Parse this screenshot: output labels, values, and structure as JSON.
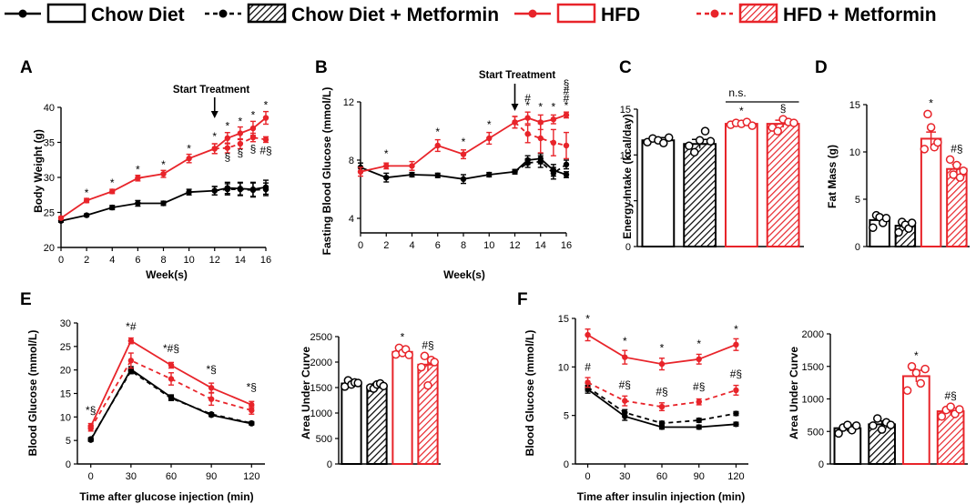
{
  "colors": {
    "black": "#000000",
    "red": "#e8242a"
  },
  "legend": [
    {
      "label": "Chow Diet",
      "color": "#000000",
      "dashed": false,
      "hatched": false
    },
    {
      "label": "Chow Diet + Metformin",
      "color": "#000000",
      "dashed": true,
      "hatched": true
    },
    {
      "label": "HFD",
      "color": "#e8242a",
      "dashed": false,
      "hatched": false
    },
    {
      "label": "HFD + Metformin",
      "color": "#e8242a",
      "dashed": true,
      "hatched": true
    }
  ],
  "chart_data": [
    {
      "panel": "A",
      "type": "line",
      "title": "",
      "xlabel": "Week(s)",
      "ylabel": "Body Weight (g)",
      "xlim": [
        0,
        16
      ],
      "ylim": [
        20,
        40
      ],
      "xticks": [
        0,
        2,
        4,
        6,
        8,
        10,
        12,
        14,
        16
      ],
      "yticks": [
        20,
        25,
        30,
        35,
        40
      ],
      "x": [
        0,
        2,
        4,
        6,
        8,
        10,
        12,
        13,
        14,
        15,
        16
      ],
      "series": [
        {
          "name": "Chow Diet",
          "values": [
            23.8,
            24.6,
            25.7,
            26.3,
            26.3,
            27.9,
            28.1,
            28.5,
            28.4,
            28.3,
            28.6
          ],
          "err": [
            0.2,
            0.2,
            0.3,
            0.4,
            0.3,
            0.4,
            0.6,
            0.8,
            0.9,
            1.0,
            1.0
          ]
        },
        {
          "name": "Chow Diet + Metformin",
          "values": [
            null,
            null,
            null,
            null,
            null,
            null,
            28.1,
            28.3,
            28.3,
            28.2,
            28.3
          ],
          "err": [
            0,
            0,
            0,
            0,
            0,
            0,
            0.6,
            0.8,
            0.9,
            1.0,
            0.9
          ]
        },
        {
          "name": "HFD",
          "values": [
            24.2,
            26.7,
            28.0,
            29.9,
            30.5,
            32.7,
            34.1,
            35.6,
            36.3,
            37.0,
            38.5
          ],
          "err": [
            0.2,
            0.3,
            0.3,
            0.4,
            0.5,
            0.6,
            0.7,
            0.8,
            0.9,
            1.0,
            0.9
          ]
        },
        {
          "name": "HFD + Metformin",
          "values": [
            null,
            null,
            null,
            null,
            null,
            null,
            34.1,
            34.2,
            34.8,
            35.7,
            35.4
          ],
          "err": [
            0,
            0,
            0,
            0,
            0,
            0,
            0.7,
            0.7,
            0.7,
            0.6,
            0.4
          ]
        }
      ],
      "annotation_text": "Start Treatment",
      "annotation_x": 12,
      "marks": [
        {
          "x": 2,
          "y": 27.3,
          "t": "*"
        },
        {
          "x": 4,
          "y": 28.7,
          "t": "*"
        },
        {
          "x": 6,
          "y": 30.6,
          "t": "*"
        },
        {
          "x": 8,
          "y": 31.3,
          "t": "*"
        },
        {
          "x": 10,
          "y": 33.6,
          "t": "*"
        },
        {
          "x": 12,
          "y": 35.3,
          "t": "*"
        },
        {
          "x": 13,
          "y": 36.8,
          "t": "*"
        },
        {
          "x": 14,
          "y": 37.5,
          "t": "*"
        },
        {
          "x": 15,
          "y": 38.4,
          "t": "*"
        },
        {
          "x": 16,
          "y": 39.8,
          "t": "*"
        },
        {
          "x": 13,
          "y": 32.4,
          "t": "§"
        },
        {
          "x": 14,
          "y": 33.0,
          "t": "§"
        },
        {
          "x": 15,
          "y": 33.6,
          "t": "§"
        },
        {
          "x": 16,
          "y": 33.3,
          "t": "#§"
        }
      ]
    },
    {
      "panel": "B",
      "type": "line",
      "title": "",
      "xlabel": "Week(s)",
      "ylabel": "Fasting Blood Glucose (mmol/L)",
      "xlim": [
        0,
        16
      ],
      "ylim": [
        3,
        12
      ],
      "xticks": [
        0,
        2,
        4,
        6,
        8,
        10,
        12,
        14,
        16
      ],
      "yticks": [
        4,
        8,
        12
      ],
      "x": [
        0,
        2,
        4,
        6,
        8,
        10,
        12,
        13,
        14,
        15,
        16
      ],
      "series": [
        {
          "name": "Chow Diet",
          "values": [
            7.5,
            6.8,
            7.0,
            6.95,
            6.7,
            7.0,
            7.2,
            8.0,
            8.1,
            7.3,
            7.0
          ],
          "err": [
            0.3,
            0.3,
            0.15,
            0.15,
            0.3,
            0.15,
            0.15,
            0.3,
            0.35,
            0.4,
            0.2
          ]
        },
        {
          "name": "Chow Diet + Metformin",
          "values": [
            null,
            null,
            null,
            null,
            null,
            null,
            7.2,
            7.8,
            7.9,
            7.1,
            7.7
          ],
          "err": [
            0,
            0,
            0,
            0,
            0,
            0,
            0.15,
            0.3,
            0.4,
            0.4,
            0.3
          ]
        },
        {
          "name": "HFD",
          "values": [
            7.2,
            7.6,
            7.6,
            9.0,
            8.4,
            9.5,
            10.6,
            10.9,
            10.6,
            10.8,
            11.1
          ],
          "err": [
            0.3,
            0.2,
            0.3,
            0.4,
            0.3,
            0.4,
            0.4,
            0.4,
            0.5,
            0.3,
            0.2
          ]
        },
        {
          "name": "HFD + Metformin",
          "values": [
            null,
            null,
            null,
            null,
            null,
            null,
            10.6,
            9.8,
            9.5,
            9.2,
            9.0
          ],
          "err": [
            0,
            0,
            0,
            0,
            0,
            0,
            0.4,
            0.6,
            1.0,
            0.9,
            0.9
          ]
        }
      ],
      "annotation_text": "Start Treatment",
      "annotation_x": 12,
      "marks": [
        {
          "x": 2,
          "y": 8.2,
          "t": "*"
        },
        {
          "x": 6,
          "y": 9.7,
          "t": "*"
        },
        {
          "x": 8,
          "y": 9.0,
          "t": "*"
        },
        {
          "x": 10,
          "y": 10.2,
          "t": "*"
        },
        {
          "x": 12,
          "y": 11.3,
          "t": "*"
        },
        {
          "x": 13,
          "y": 11.5,
          "t": "*"
        },
        {
          "x": 13,
          "y": 12.0,
          "t": "#"
        },
        {
          "x": 14,
          "y": 11.4,
          "t": "*"
        },
        {
          "x": 15,
          "y": 11.4,
          "t": "*"
        },
        {
          "x": 16,
          "y": 11.5,
          "t": "*"
        },
        {
          "x": 16,
          "y": 12.0,
          "t": "#"
        },
        {
          "x": 16,
          "y": 12.5,
          "t": "#"
        },
        {
          "x": 16,
          "y": 13.0,
          "t": "§"
        }
      ]
    },
    {
      "panel": "C",
      "type": "bar",
      "title": "",
      "xlabel": "",
      "ylabel": "Energy Intake (kcal/day)",
      "ylim": [
        0,
        15
      ],
      "yticks": [
        0,
        5,
        10,
        15
      ],
      "categories": [
        "Chow Diet",
        "Chow Diet + Metformin",
        "HFD",
        "HFD + Metformin"
      ],
      "values": [
        11.6,
        11.2,
        13.4,
        13.4
      ],
      "err": [
        0.3,
        0.5,
        0.2,
        0.4
      ],
      "points": [
        [
          11.4,
          11.8,
          11.6,
          11.3,
          11.9
        ],
        [
          11.0,
          10.3,
          11.6,
          12.6,
          11.5
        ],
        [
          13.3,
          13.5,
          13.4,
          13.6,
          13.2
        ],
        [
          13.0,
          12.6,
          13.9,
          13.6,
          13.5
        ]
      ],
      "marks": [
        {
          "i": 2,
          "t": "*"
        },
        {
          "i": 3,
          "t": "§"
        }
      ],
      "bracket_label": "n.s."
    },
    {
      "panel": "D",
      "type": "bar",
      "title": "",
      "xlabel": "",
      "ylabel": "Fat Mass (g)",
      "ylim": [
        0,
        15
      ],
      "yticks": [
        0,
        5,
        10,
        15
      ],
      "categories": [
        "Chow Diet",
        "Chow Diet + Metformin",
        "HFD",
        "HFD + Metformin"
      ],
      "values": [
        2.8,
        2.2,
        11.4,
        8.2
      ],
      "err": [
        0.3,
        0.3,
        0.7,
        0.5
      ],
      "points": [
        [
          2.0,
          3.3,
          3.1,
          2.5,
          3.0
        ],
        [
          1.5,
          2.6,
          2.3,
          1.9,
          2.5
        ],
        [
          10.3,
          14.0,
          12.6,
          10.5,
          11.0
        ],
        [
          9.2,
          7.6,
          8.6,
          7.3,
          8.0
        ]
      ],
      "marks": [
        {
          "i": 2,
          "t": "*"
        },
        {
          "i": 3,
          "t": "#§"
        }
      ]
    },
    {
      "panel": "E",
      "type": "line",
      "title": "",
      "xlabel": "Time after glucose injection (min)",
      "ylabel": "Blood Glucose (mmol/L)",
      "xlim": [
        -10,
        130
      ],
      "ylim": [
        0,
        30
      ],
      "xticks": [
        0,
        30,
        60,
        90,
        120
      ],
      "yticks": [
        0,
        5,
        10,
        15,
        20,
        25,
        30
      ],
      "x": [
        0,
        30,
        60,
        90,
        120
      ],
      "series": [
        {
          "name": "Chow Diet",
          "values": [
            5.1,
            20.1,
            14.2,
            10.4,
            8.6
          ],
          "err": [
            0.3,
            0.6,
            0.5,
            0.3,
            0.3
          ]
        },
        {
          "name": "Chow Diet + Metformin",
          "values": [
            5.3,
            19.8,
            14.0,
            10.6,
            8.7
          ],
          "err": [
            0.3,
            0.6,
            0.5,
            0.3,
            0.3
          ]
        },
        {
          "name": "HFD",
          "values": [
            8.0,
            26.2,
            21.0,
            16.2,
            12.6
          ],
          "err": [
            0.6,
            0.6,
            0.6,
            1.0,
            0.7
          ]
        },
        {
          "name": "HFD + Metformin",
          "values": [
            7.6,
            22.0,
            18.1,
            13.8,
            11.4
          ],
          "err": [
            0.6,
            1.6,
            1.3,
            1.3,
            0.8
          ]
        }
      ],
      "marks": [
        {
          "x": 0,
          "y": 10.6,
          "t": "*§"
        },
        {
          "x": 30,
          "y": 28.5,
          "t": "*#"
        },
        {
          "x": 60,
          "y": 23.8,
          "t": "*#§"
        },
        {
          "x": 90,
          "y": 19.4,
          "t": "*§"
        },
        {
          "x": 120,
          "y": 15.6,
          "t": "*§"
        }
      ]
    },
    {
      "panel": "E2",
      "type": "bar",
      "title": "",
      "xlabel": "",
      "ylabel": "Area Under Curve",
      "ylim": [
        0,
        2500
      ],
      "yticks": [
        0,
        500,
        1000,
        1500,
        2000,
        2500
      ],
      "categories": [
        "Chow Diet",
        "Chow Diet + Metformin",
        "HFD",
        "HFD + Metformin"
      ],
      "values": [
        1580,
        1530,
        2200,
        1950
      ],
      "err": [
        50,
        50,
        70,
        130
      ],
      "points": [
        [
          1520,
          1640,
          1560,
          1600,
          1590
        ],
        [
          1500,
          1480,
          1560,
          1580,
          1530
        ],
        [
          2150,
          2280,
          2180,
          2250,
          2140
        ],
        [
          1900,
          2120,
          1540,
          2040,
          2000
        ]
      ],
      "marks": [
        {
          "i": 2,
          "t": "*"
        },
        {
          "i": 3,
          "t": "#§"
        }
      ]
    },
    {
      "panel": "F",
      "type": "line",
      "title": "",
      "xlabel": "Time after insulin injection (min)",
      "ylabel": "Blood Glucose (mmol/L)",
      "xlim": [
        -10,
        130
      ],
      "ylim": [
        0,
        15
      ],
      "xticks": [
        0,
        30,
        60,
        90,
        120
      ],
      "yticks": [
        0,
        5,
        10,
        15
      ],
      "x": [
        0,
        30,
        60,
        90,
        120
      ],
      "series": [
        {
          "name": "Chow Diet",
          "values": [
            7.7,
            4.9,
            3.8,
            3.8,
            4.1
          ],
          "err": [
            0.4,
            0.4,
            0.2,
            0.2,
            0.2
          ]
        },
        {
          "name": "Chow Diet + Metformin",
          "values": [
            7.9,
            5.3,
            4.2,
            4.5,
            5.2
          ],
          "err": [
            0.4,
            0.3,
            0.2,
            0.2,
            0.2
          ]
        },
        {
          "name": "HFD",
          "values": [
            13.3,
            11.0,
            10.3,
            10.8,
            12.3
          ],
          "err": [
            0.6,
            0.7,
            0.6,
            0.5,
            0.6
          ]
        },
        {
          "name": "HFD + Metformin",
          "values": [
            8.4,
            6.5,
            5.9,
            6.4,
            7.6
          ],
          "err": [
            0.5,
            0.5,
            0.4,
            0.3,
            0.5
          ]
        }
      ],
      "marks": [
        {
          "x": 0,
          "y": 14.6,
          "t": "*"
        },
        {
          "x": 30,
          "y": 12.3,
          "t": "*"
        },
        {
          "x": 60,
          "y": 11.6,
          "t": "*"
        },
        {
          "x": 90,
          "y": 12.0,
          "t": "*"
        },
        {
          "x": 120,
          "y": 13.5,
          "t": "*"
        },
        {
          "x": 0,
          "y": 9.6,
          "t": "#"
        },
        {
          "x": 30,
          "y": 7.8,
          "t": "#§"
        },
        {
          "x": 60,
          "y": 7.1,
          "t": "#§"
        },
        {
          "x": 90,
          "y": 7.6,
          "t": "#§"
        },
        {
          "x": 120,
          "y": 8.9,
          "t": "#§"
        }
      ]
    },
    {
      "panel": "F2",
      "type": "bar",
      "title": "",
      "xlabel": "",
      "ylabel": "Area Under Curve",
      "ylim": [
        0,
        2000
      ],
      "yticks": [
        0,
        500,
        1000,
        1500,
        2000
      ],
      "categories": [
        "Chow Diet",
        "Chow Diet + Metformin",
        "HFD",
        "HFD + Metformin"
      ],
      "values": [
        550,
        610,
        1350,
        810
      ],
      "err": [
        50,
        50,
        90,
        50
      ],
      "points": [
        [
          470,
          560,
          600,
          520,
          590
        ],
        [
          590,
          700,
          530,
          640,
          600
        ],
        [
          1130,
          1500,
          1400,
          1240,
          1460
        ],
        [
          730,
          830,
          880,
          770,
          840
        ]
      ],
      "marks": [
        {
          "i": 2,
          "t": "*"
        },
        {
          "i": 3,
          "t": "#§"
        }
      ]
    }
  ]
}
